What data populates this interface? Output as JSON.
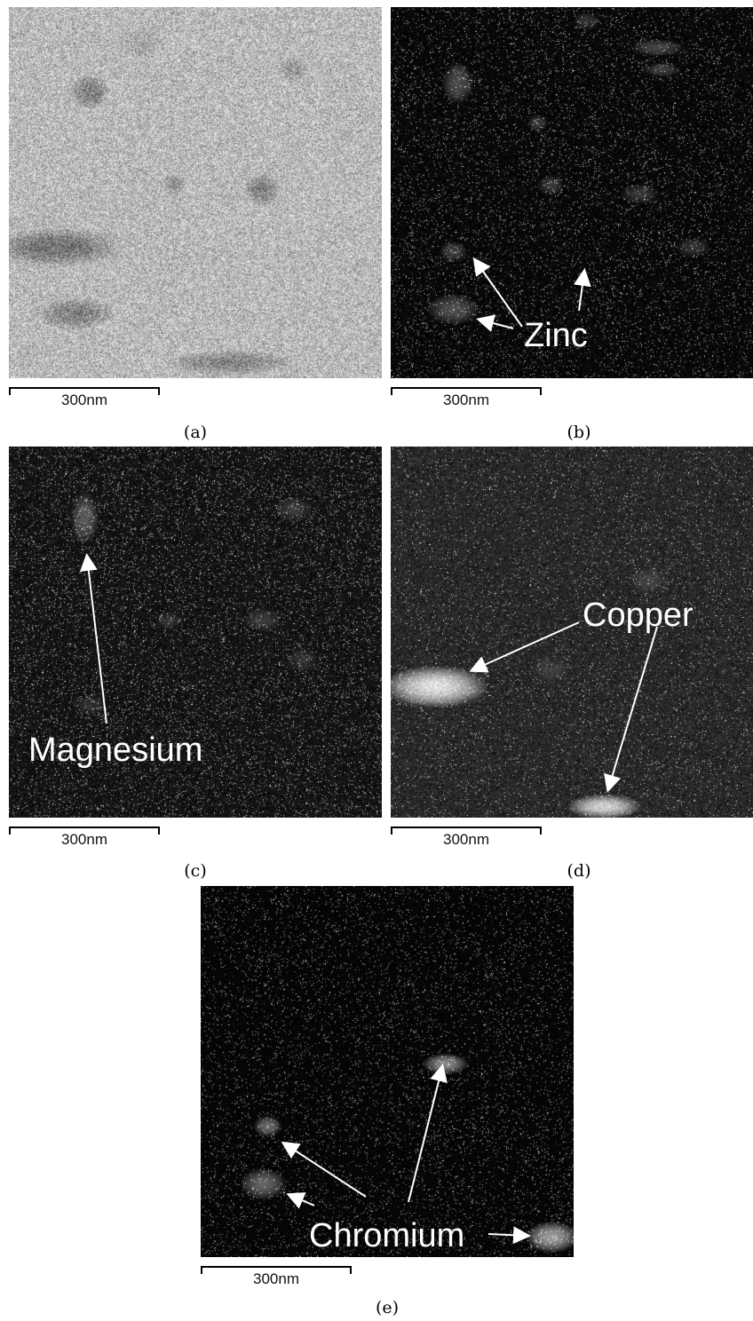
{
  "figure": {
    "panels": [
      {
        "id": "a",
        "caption": "(a)",
        "scale_label": "300nm",
        "annotation": ""
      },
      {
        "id": "b",
        "caption": "(b)",
        "scale_label": "300nm",
        "annotation": "Zinc"
      },
      {
        "id": "c",
        "caption": "(c)",
        "scale_label": "300nm",
        "annotation": "Magnesium"
      },
      {
        "id": "d",
        "caption": "(d)",
        "scale_label": "300nm",
        "annotation": "Copper"
      },
      {
        "id": "e",
        "caption": "(e)",
        "scale_label": "300nm",
        "annotation": "Chromium"
      }
    ]
  },
  "colors": {
    "page_background": "#ffffff",
    "bright_field_base": "#b8b8b8",
    "map_background": "#050505",
    "annotation": "#ffffff",
    "scale_bar": "#000000"
  }
}
